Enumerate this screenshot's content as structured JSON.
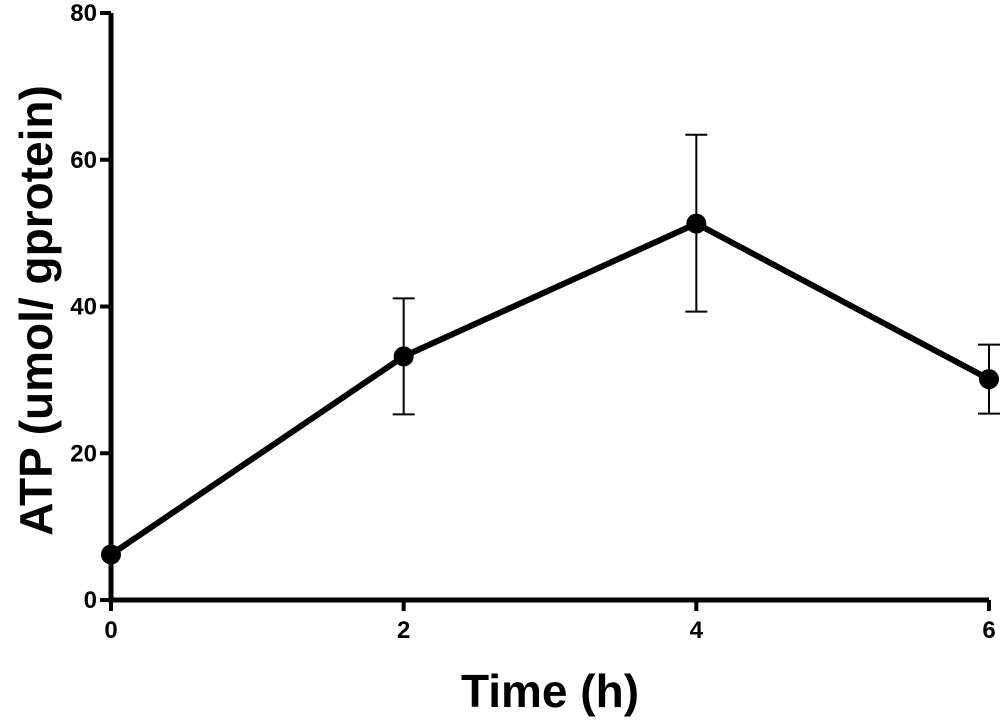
{
  "chart_data": {
    "type": "line",
    "xlabel": "Time (h)",
    "ylabel": "ATP (umol/ gprotein)",
    "xlim": [
      0,
      6
    ],
    "ylim": [
      0,
      80
    ],
    "x_ticks": [
      "0",
      "2",
      "4",
      "6"
    ],
    "y_ticks": [
      "0",
      "20",
      "40",
      "60",
      "80"
    ],
    "grid": false,
    "series": [
      {
        "x": [
          0,
          2,
          4,
          6
        ],
        "y": [
          6.2,
          33.2,
          51.3,
          30.1
        ],
        "err_low": [
          6.2,
          25.3,
          39.3,
          25.4
        ],
        "err_high": [
          6.2,
          41.1,
          63.4,
          34.8
        ]
      }
    ],
    "colors": {
      "line": "#000000",
      "marker": "#000000"
    }
  }
}
